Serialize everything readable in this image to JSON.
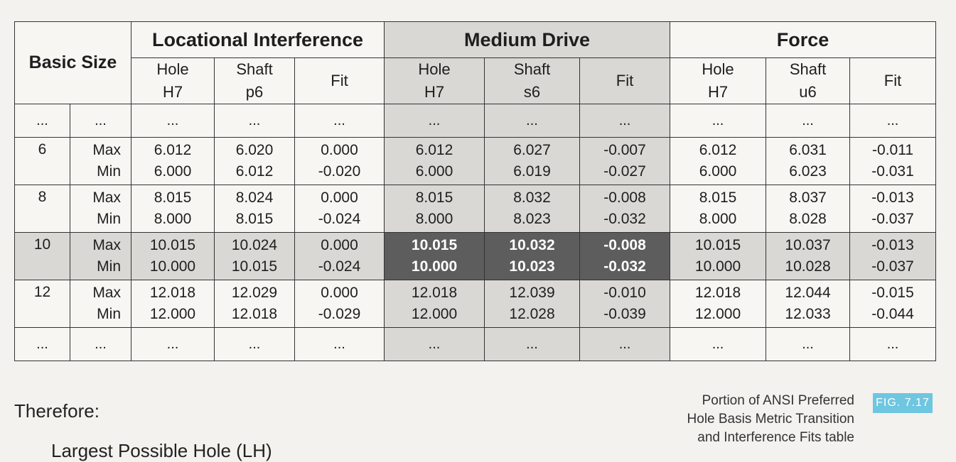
{
  "table": {
    "basic_size_header": "Basic Size",
    "groups": [
      {
        "title": "Locational Interference",
        "hole": [
          "Hole",
          "H7"
        ],
        "shaft": [
          "Shaft",
          "p6"
        ],
        "fit": "Fit"
      },
      {
        "title": "Medium Drive",
        "hole": [
          "Hole",
          "H7"
        ],
        "shaft": [
          "Shaft",
          "s6"
        ],
        "fit": "Fit"
      },
      {
        "title": "Force",
        "hole": [
          "Hole",
          "H7"
        ],
        "shaft": [
          "Shaft",
          "u6"
        ],
        "fit": "Fit"
      }
    ],
    "ellipsis": "...",
    "rows": [
      {
        "size": "6",
        "max": "Max",
        "min": "Min",
        "li": {
          "hole": [
            "6.012",
            "6.000"
          ],
          "shaft": [
            "6.020",
            "6.012"
          ],
          "fit": [
            "0.000",
            "-0.020"
          ]
        },
        "md": {
          "hole": [
            "6.012",
            "6.000"
          ],
          "shaft": [
            "6.027",
            "6.019"
          ],
          "fit": [
            "-0.007",
            "-0.027"
          ]
        },
        "fo": {
          "hole": [
            "6.012",
            "6.000"
          ],
          "shaft": [
            "6.031",
            "6.023"
          ],
          "fit": [
            "-0.011",
            "-0.031"
          ]
        }
      },
      {
        "size": "8",
        "max": "Max",
        "min": "Min",
        "li": {
          "hole": [
            "8.015",
            "8.000"
          ],
          "shaft": [
            "8.024",
            "8.015"
          ],
          "fit": [
            "0.000",
            "-0.024"
          ]
        },
        "md": {
          "hole": [
            "8.015",
            "8.000"
          ],
          "shaft": [
            "8.032",
            "8.023"
          ],
          "fit": [
            "-0.008",
            "-0.032"
          ]
        },
        "fo": {
          "hole": [
            "8.015",
            "8.000"
          ],
          "shaft": [
            "8.037",
            "8.028"
          ],
          "fit": [
            "-0.013",
            "-0.037"
          ]
        }
      },
      {
        "size": "10",
        "max": "Max",
        "min": "Min",
        "li": {
          "hole": [
            "10.015",
            "10.000"
          ],
          "shaft": [
            "10.024",
            "10.015"
          ],
          "fit": [
            "0.000",
            "-0.024"
          ]
        },
        "md": {
          "hole": [
            "10.015",
            "10.000"
          ],
          "shaft": [
            "10.032",
            "10.023"
          ],
          "fit": [
            "-0.008",
            "-0.032"
          ]
        },
        "fo": {
          "hole": [
            "10.015",
            "10.000"
          ],
          "shaft": [
            "10.037",
            "10.028"
          ],
          "fit": [
            "-0.013",
            "-0.037"
          ]
        }
      },
      {
        "size": "12",
        "max": "Max",
        "min": "Min",
        "li": {
          "hole": [
            "12.018",
            "12.000"
          ],
          "shaft": [
            "12.029",
            "12.018"
          ],
          "fit": [
            "0.000",
            "-0.029"
          ]
        },
        "md": {
          "hole": [
            "12.018",
            "12.000"
          ],
          "shaft": [
            "12.039",
            "12.028"
          ],
          "fit": [
            "-0.010",
            "-0.039"
          ]
        },
        "fo": {
          "hole": [
            "12.018",
            "12.000"
          ],
          "shaft": [
            "12.044",
            "12.033"
          ],
          "fit": [
            "-0.015",
            "-0.044"
          ]
        }
      }
    ]
  },
  "text": {
    "therefore": "Therefore:",
    "cutoff_line": "Largest Possible Hole (LH)"
  },
  "caption": {
    "lines": [
      "Portion of ANSI Preferred",
      "Hole Basis Metric Transition",
      "and Interference Fits table"
    ],
    "figure": "FIG. 7.17"
  },
  "colors": {
    "shaded": "#d9d8d4",
    "highlight": "#5d5d5d",
    "badge": "#6ec6e0"
  }
}
